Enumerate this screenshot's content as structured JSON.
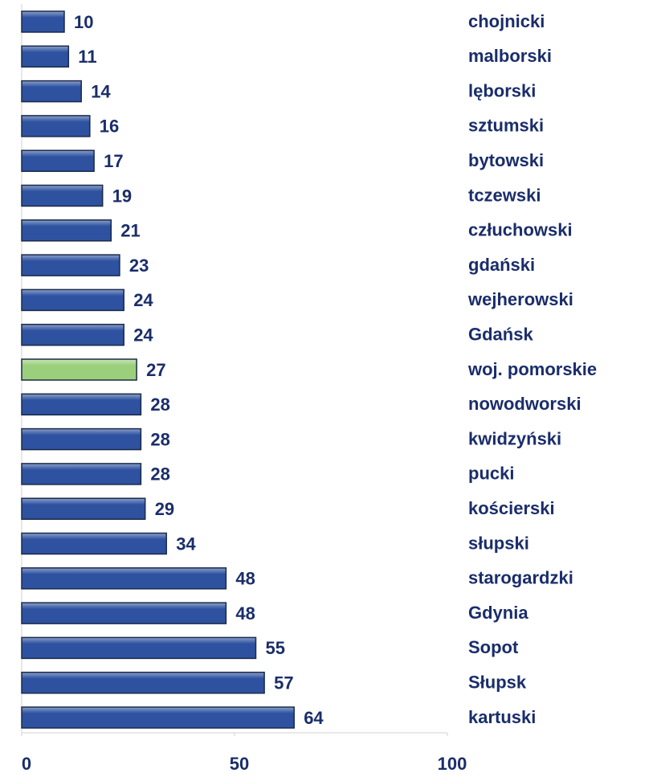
{
  "chart_data": {
    "type": "hbar",
    "categories": [
      "chojnicki",
      "malborski",
      "lęborski",
      "sztumski",
      "bytowski",
      "tczewski",
      "człuchowski",
      "gdański",
      "wejherowski",
      "Gdańsk",
      "woj. pomorskie",
      "nowodworski",
      "kwidzyński",
      "pucki",
      "kościerski",
      "słupski",
      "starogardzki",
      "Gdynia",
      "Sopot",
      "Słupsk",
      "kartuski"
    ],
    "values": [
      10,
      11,
      14,
      16,
      17,
      19,
      21,
      23,
      24,
      24,
      27,
      28,
      28,
      28,
      29,
      34,
      48,
      48,
      55,
      57,
      64
    ],
    "colors": [
      "#2e52a0",
      "#2e52a0",
      "#2e52a0",
      "#2e52a0",
      "#2e52a0",
      "#2e52a0",
      "#2e52a0",
      "#2e52a0",
      "#2e52a0",
      "#2e52a0",
      "#9ccf7c",
      "#2e52a0",
      "#2e52a0",
      "#2e52a0",
      "#2e52a0",
      "#2e52a0",
      "#2e52a0",
      "#2e52a0",
      "#2e52a0",
      "#2e52a0",
      "#2e52a0"
    ],
    "xlim": [
      0,
      100
    ],
    "xticks": [
      0,
      50,
      100
    ]
  }
}
